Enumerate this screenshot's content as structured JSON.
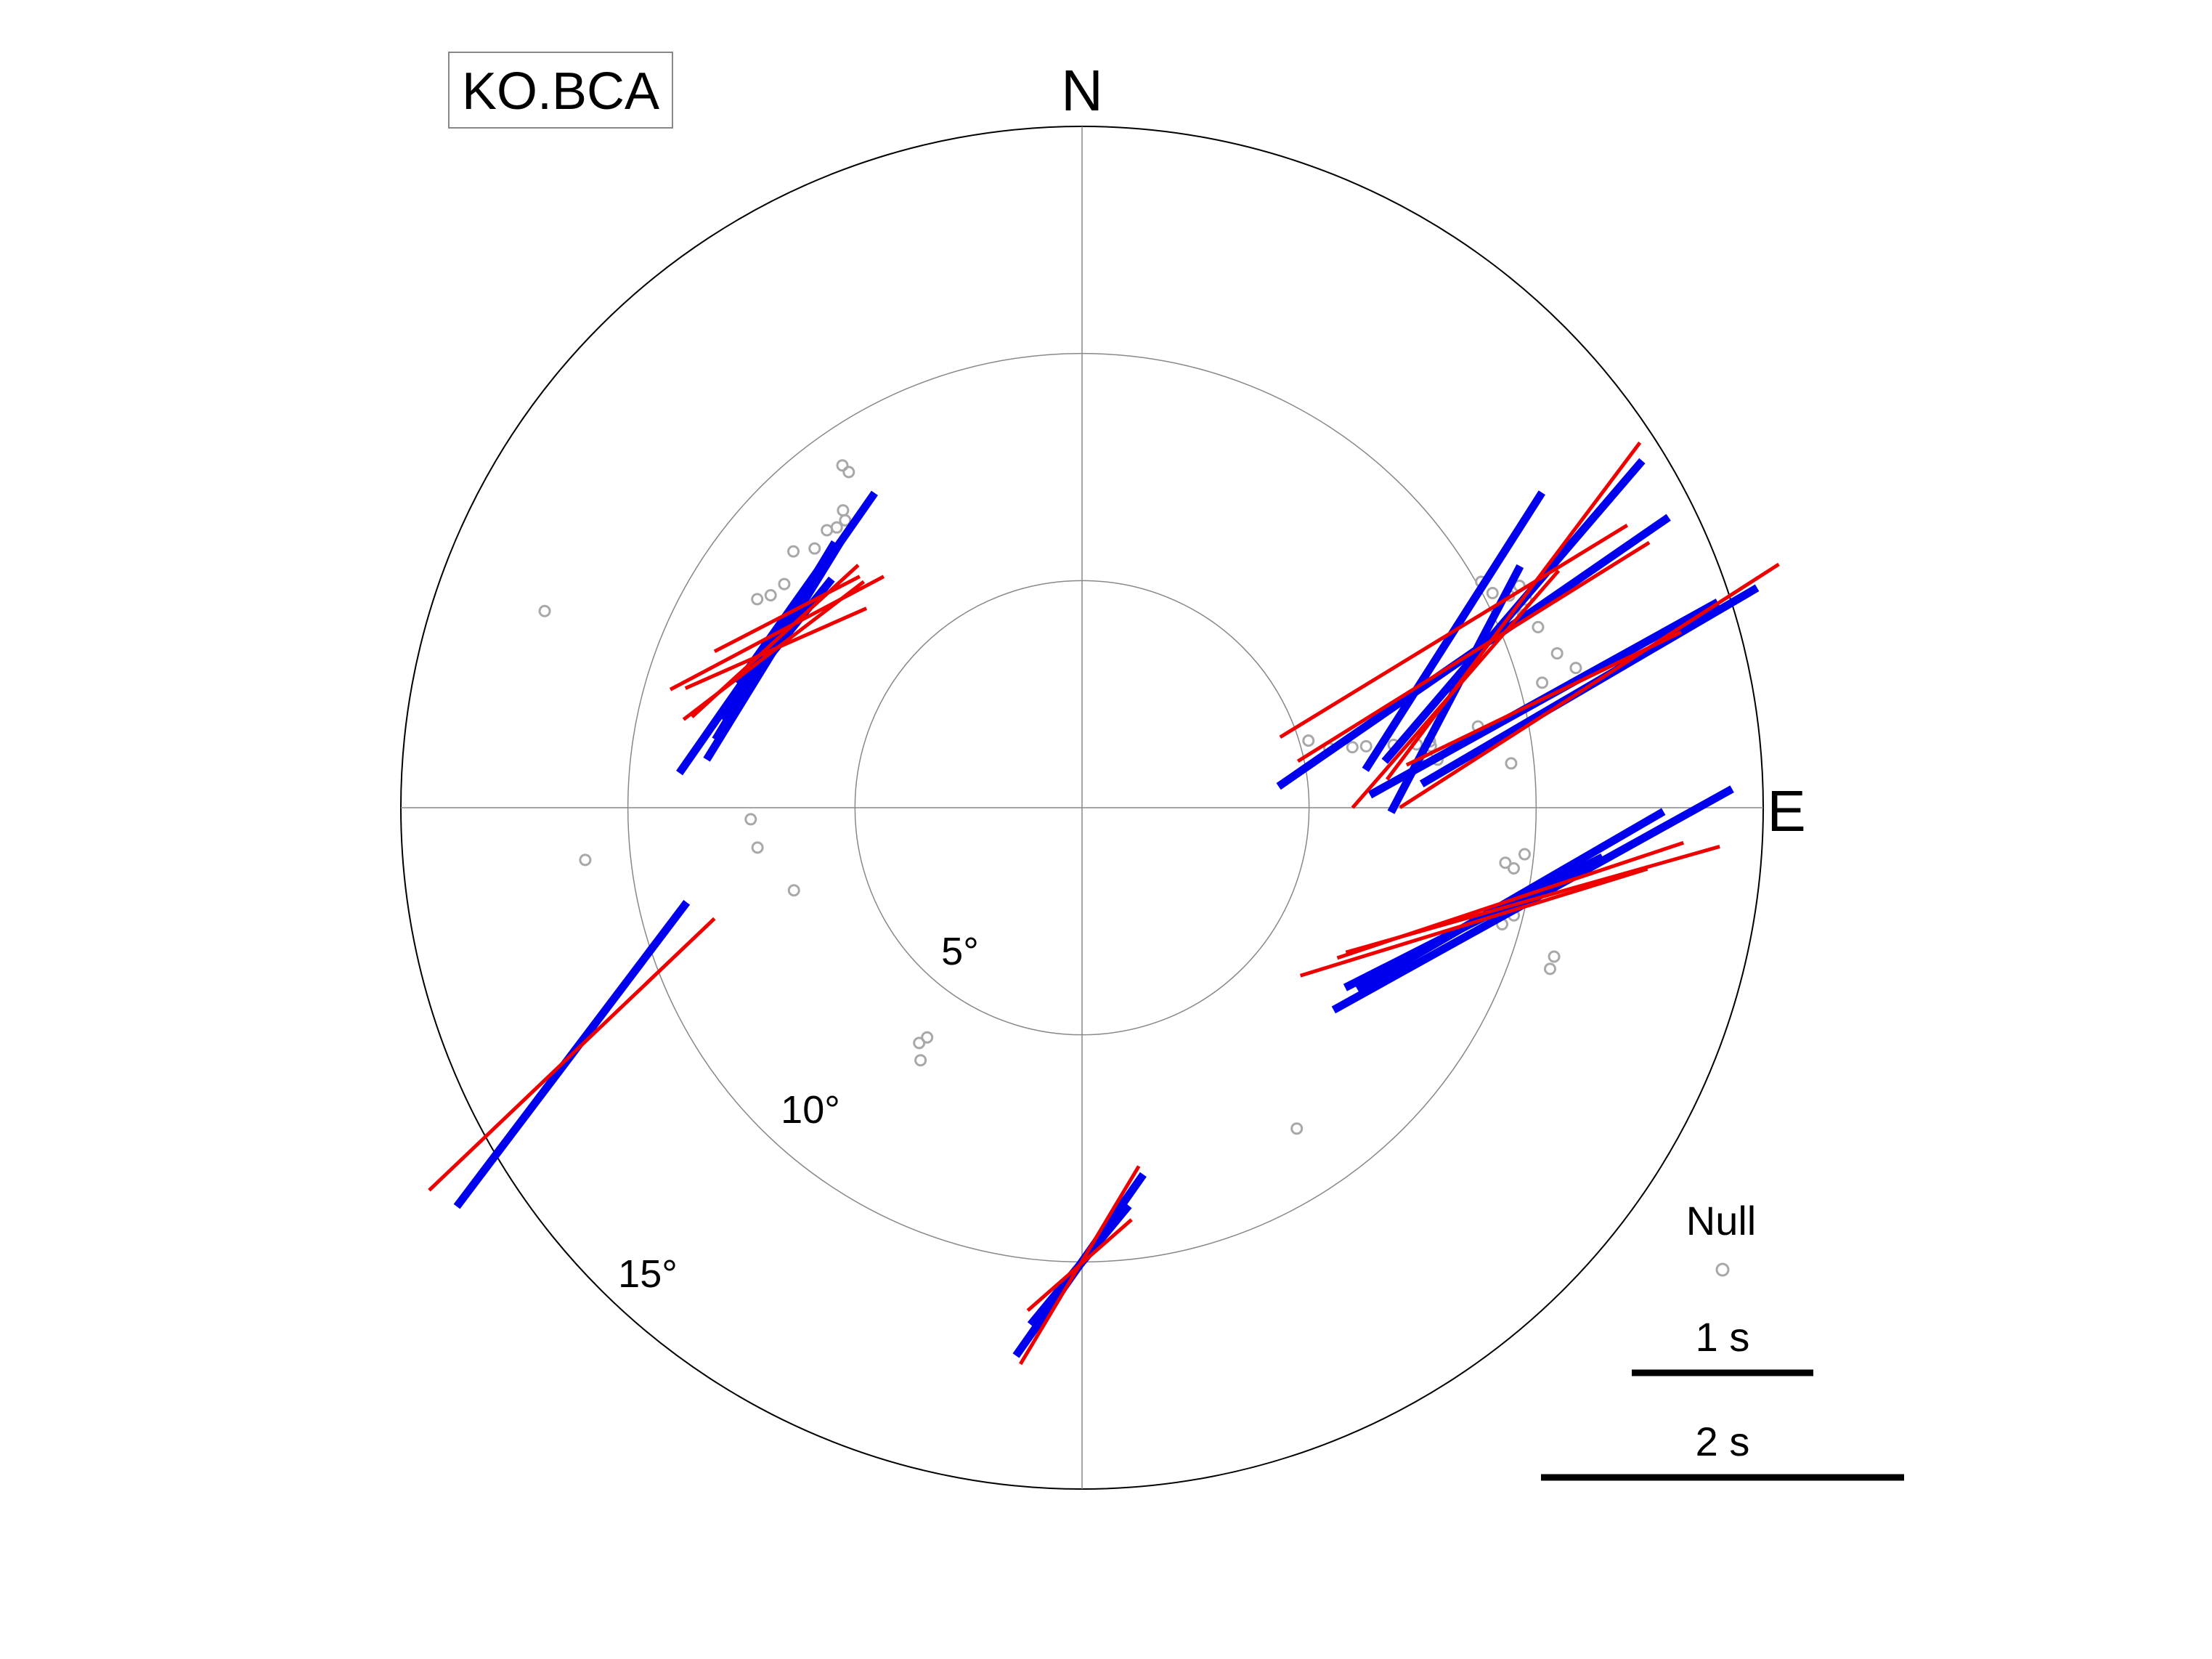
{
  "station": "KO.BCA",
  "chart_data": {
    "type": "scatter",
    "projection": "polar",
    "directions": {
      "north": "N",
      "east": "E"
    },
    "radial_range": [
      0,
      15
    ],
    "rings": [
      {
        "value": 5,
        "label": "5°"
      },
      {
        "value": 10,
        "label": "10°"
      },
      {
        "value": 15,
        "label": "15°"
      }
    ],
    "colors": {
      "series_blue": "#0000ee",
      "series_red": "#ee0000",
      "null": "#a8a8a8",
      "grid": "#888888",
      "frame": "#000000"
    },
    "legend": {
      "null_label": "Null",
      "scale_labels": [
        "1 s",
        "2 s"
      ],
      "scale_values": [
        1,
        2
      ]
    },
    "series": [
      {
        "color_key": "series_blue",
        "marker": "bar",
        "points": [
          {
            "az": 298.5,
            "inc": 7.69,
            "phi": 31.2,
            "dt": 1.27
          },
          {
            "az": 299.8,
            "inc": 7.74,
            "phi": 34.9,
            "dt": 1.88
          },
          {
            "az": 297.0,
            "inc": 7.62,
            "phi": 31.6,
            "dt": 1.41
          },
          {
            "az": 303.3,
            "inc": 7.77,
            "phi": 35.3,
            "dt": 0.94
          },
          {
            "az": 297.5,
            "inc": 7.6,
            "phi": 38.9,
            "dt": 0.98
          },
          {
            "az": 244.2,
            "inc": 12.48,
            "phi": 37.1,
            "dt": 2.1
          },
          {
            "az": 72.4,
            "inc": 8.63,
            "phi": 27.7,
            "dt": 1.53
          },
          {
            "az": 64.6,
            "inc": 9.06,
            "phi": 32.5,
            "dt": 1.81
          },
          {
            "az": 68.3,
            "inc": 9.28,
            "phi": 55.4,
            "dt": 2.61
          },
          {
            "az": 65.5,
            "inc": 10.44,
            "phi": 40.6,
            "dt": 2.18
          },
          {
            "az": 76.7,
            "inc": 10.45,
            "phi": 61.0,
            "dt": 2.19
          },
          {
            "az": 76.5,
            "inc": 11.49,
            "phi": 59.7,
            "dt": 2.14
          },
          {
            "az": 102.2,
            "inc": 9.65,
            "phi": 59.9,
            "dt": 1.95
          },
          {
            "az": 106.3,
            "inc": 8.99,
            "phi": 63.1,
            "dt": 1.59
          },
          {
            "az": 101.5,
            "inc": 10.13,
            "phi": 61.0,
            "dt": 2.51
          },
          {
            "az": 180.3,
            "inc": 10.07,
            "phi": 39.5,
            "dt": 0.85
          },
          {
            "az": 180.3,
            "inc": 10.07,
            "phi": 35.1,
            "dt": 1.22
          }
        ]
      },
      {
        "color_key": "series_red",
        "marker": "bar",
        "points": [
          {
            "az": 298.5,
            "inc": 7.69,
            "phi": 47.6,
            "dt": 1.24
          },
          {
            "az": 299.8,
            "inc": 7.74,
            "phi": 62.1,
            "dt": 1.33
          },
          {
            "az": 297.0,
            "inc": 7.62,
            "phi": 52.6,
            "dt": 1.25
          },
          {
            "az": 303.3,
            "inc": 7.77,
            "phi": 62.7,
            "dt": 0.9
          },
          {
            "az": 297.5,
            "inc": 7.6,
            "phi": 66.2,
            "dt": 1.09
          },
          {
            "az": 244.2,
            "inc": 12.48,
            "phi": 46.4,
            "dt": 2.17
          },
          {
            "az": 72.4,
            "inc": 8.63,
            "phi": 41.0,
            "dt": 1.73
          },
          {
            "az": 64.6,
            "inc": 9.06,
            "phi": 58.6,
            "dt": 2.24
          },
          {
            "az": 68.3,
            "inc": 9.28,
            "phi": 58.1,
            "dt": 2.28
          },
          {
            "az": 65.5,
            "inc": 10.44,
            "phi": 36.9,
            "dt": 2.32
          },
          {
            "az": 76.7,
            "inc": 10.45,
            "phi": 64.2,
            "dt": 1.68
          },
          {
            "az": 76.5,
            "inc": 11.49,
            "phi": 57.3,
            "dt": 2.48
          },
          {
            "az": 102.2,
            "inc": 9.65,
            "phi": 71.6,
            "dt": 2.01
          },
          {
            "az": 106.3,
            "inc": 8.99,
            "phi": 72.9,
            "dt": 2.0
          },
          {
            "az": 101.5,
            "inc": 10.13,
            "phi": 74.2,
            "dt": 2.14
          },
          {
            "az": 180.3,
            "inc": 10.07,
            "phi": 30.9,
            "dt": 1.27
          },
          {
            "az": 180.3,
            "inc": 10.07,
            "phi": 48.8,
            "dt": 0.76
          }
        ]
      }
    ],
    "nulls": [
      {
        "az": 325.0,
        "inc": 9.2
      },
      {
        "az": 325.2,
        "inc": 9.0
      },
      {
        "az": 321.2,
        "inc": 8.4
      },
      {
        "az": 320.5,
        "inc": 8.2
      },
      {
        "az": 318.8,
        "inc": 8.2
      },
      {
        "az": 317.4,
        "inc": 8.3
      },
      {
        "az": 314.1,
        "inc": 8.2
      },
      {
        "az": 311.6,
        "inc": 8.5
      },
      {
        "az": 306.9,
        "inc": 8.2
      },
      {
        "az": 304.3,
        "inc": 8.3
      },
      {
        "az": 302.7,
        "inc": 8.5
      },
      {
        "az": 290.1,
        "inc": 12.6
      },
      {
        "az": 264.0,
        "inc": 11.0
      },
      {
        "az": 268.0,
        "inc": 7.3
      },
      {
        "az": 263.0,
        "inc": 7.2
      },
      {
        "az": 254.0,
        "inc": 6.6
      },
      {
        "az": 212.6,
        "inc": 6.6
      },
      {
        "az": 214.7,
        "inc": 6.3
      },
      {
        "az": 214.0,
        "inc": 6.1
      },
      {
        "az": 146.2,
        "inc": 8.5
      },
      {
        "az": 73.5,
        "inc": 5.2
      },
      {
        "az": 76.5,
        "inc": 5.6
      },
      {
        "az": 77.4,
        "inc": 6.1
      },
      {
        "az": 77.8,
        "inc": 6.4
      },
      {
        "az": 78.6,
        "inc": 7.0
      },
      {
        "az": 79.3,
        "inc": 7.5
      },
      {
        "az": 80.0,
        "inc": 7.8
      },
      {
        "az": 79.2,
        "inc": 7.8
      },
      {
        "az": 82.0,
        "inc": 7.7
      },
      {
        "az": 82.3,
        "inc": 7.9
      },
      {
        "az": 78.4,
        "inc": 8.9
      },
      {
        "az": 60.5,
        "inc": 10.1
      },
      {
        "az": 62.4,
        "inc": 10.2
      },
      {
        "az": 63.6,
        "inc": 10.5
      },
      {
        "az": 63.1,
        "inc": 10.8
      },
      {
        "az": 64.9,
        "inc": 10.8
      },
      {
        "az": 66.4,
        "inc": 10.6
      },
      {
        "az": 68.4,
        "inc": 10.8
      },
      {
        "az": 72.0,
        "inc": 11.0
      },
      {
        "az": 74.8,
        "inc": 10.5
      },
      {
        "az": 74.2,
        "inc": 11.3
      },
      {
        "az": 84.1,
        "inc": 9.5
      },
      {
        "az": 96.0,
        "inc": 9.8
      },
      {
        "az": 97.4,
        "inc": 9.4
      },
      {
        "az": 98.0,
        "inc": 9.6
      },
      {
        "az": 104.0,
        "inc": 9.8
      },
      {
        "az": 105.5,
        "inc": 9.6
      },
      {
        "az": 107.5,
        "inc": 10.9
      },
      {
        "az": 109.0,
        "inc": 10.9
      }
    ]
  }
}
